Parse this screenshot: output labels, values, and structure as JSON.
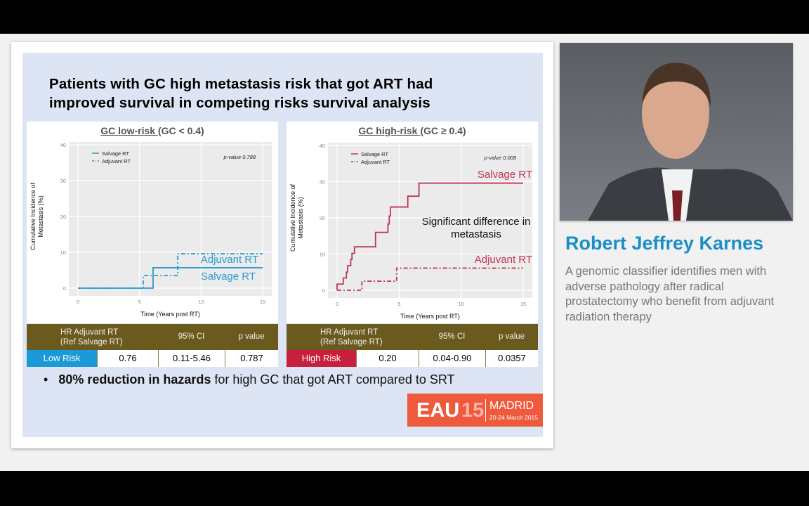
{
  "slide": {
    "title_line1": "Patients with GC high metastasis risk that got ART had",
    "title_line2": "improved survival in competing risks survival analysis",
    "bullet_bold": "80% reduction in hazards",
    "bullet_rest": " for high GC that got ART compared to SRT",
    "logo": {
      "eau": "EAU",
      "year": "15",
      "city": "MADRID",
      "dates": "20-24 March 2015"
    }
  },
  "tables": [
    {
      "h1": "HR Adjuvant  RT",
      "h2": "(Ref Salvage RT)",
      "h3": "95% CI",
      "h4": "p value",
      "label": "Low Risk",
      "hr": "0.76",
      "ci": "0.11-5.46",
      "p": "0.787",
      "color": "#1a9ad6"
    },
    {
      "h1": "HR Adjuvant  RT",
      "h2": "(Ref Salvage RT)",
      "h3": "95% CI",
      "h4": "p value",
      "label": "High Risk",
      "hr": "0.20",
      "ci": "0.04-0.90",
      "p": "0.0357",
      "color": "#c8203c"
    }
  ],
  "speaker": {
    "name": "Robert Jeffrey Karnes",
    "talk": "A genomic classifier identifies men with adverse pathology after radical prostatectomy who benefit from adjuvant radiation therapy"
  },
  "chart_data": [
    {
      "type": "line",
      "title_u": "GC low-risk ",
      "title_rest": "(GC < 0.4)",
      "xlabel": "Time (Years post RT)",
      "ylabel1": "Cumulative Incidence of",
      "ylabel2": "Metastasis (%)",
      "xlim": [
        0,
        15
      ],
      "ylim": [
        0,
        40
      ],
      "xticks": [
        0,
        5,
        10,
        15
      ],
      "yticks": [
        0,
        10,
        20,
        30,
        40
      ],
      "grid": true,
      "legend": "top-left",
      "color": "#2a9ad0",
      "pvalue": "p-value 0.788",
      "annot_adj": "Adjuvant RT",
      "annot_sal": "Salvage RT",
      "annot_mid": "",
      "series": [
        {
          "name": "Salvage RT",
          "style": "solid",
          "steps": [
            [
              0,
              0
            ],
            [
              6.1,
              5.7
            ],
            [
              15,
              5.7
            ]
          ]
        },
        {
          "name": "Adjuvant RT",
          "style": "dashdot",
          "steps": [
            [
              0,
              0
            ],
            [
              5.3,
              3.5
            ],
            [
              8.1,
              9.6
            ],
            [
              15,
              9.6
            ]
          ]
        }
      ]
    },
    {
      "type": "line",
      "title_u": "GC high-risk ",
      "title_rest": "(GC ≥ 0.4)",
      "xlabel": "Time (Years post RT)",
      "ylabel1": "Cumulative Incidence of",
      "ylabel2": "Metastasis (%)",
      "xlim": [
        0,
        15
      ],
      "ylim": [
        0,
        40
      ],
      "xticks": [
        0,
        5,
        10,
        15
      ],
      "yticks": [
        0,
        10,
        20,
        30,
        40
      ],
      "grid": true,
      "legend": "top-left",
      "color": "#c23452",
      "pvalue": "p-value 0.008",
      "annot_adj": "Adjuvant RT",
      "annot_sal": "Salvage RT",
      "annot_mid1": "Significant difference in",
      "annot_mid2": "metastasis",
      "series": [
        {
          "name": "Salvage RT",
          "style": "solid",
          "steps": [
            [
              0,
              1.7
            ],
            [
              0.5,
              3.4
            ],
            [
              0.75,
              5
            ],
            [
              0.85,
              6.8
            ],
            [
              1.1,
              8.5
            ],
            [
              1.2,
              10.2
            ],
            [
              1.4,
              12
            ],
            [
              3.1,
              16
            ],
            [
              4.1,
              18.3
            ],
            [
              4.2,
              20.5
            ],
            [
              4.3,
              23
            ],
            [
              5.7,
              26
            ],
            [
              6.6,
              29.6
            ],
            [
              15,
              29.6
            ]
          ]
        },
        {
          "name": "Adjuvant RT",
          "style": "dashdot",
          "steps": [
            [
              0,
              0
            ],
            [
              2.0,
              2.5
            ],
            [
              4.8,
              6.1
            ],
            [
              15,
              6.1
            ]
          ]
        }
      ]
    }
  ]
}
